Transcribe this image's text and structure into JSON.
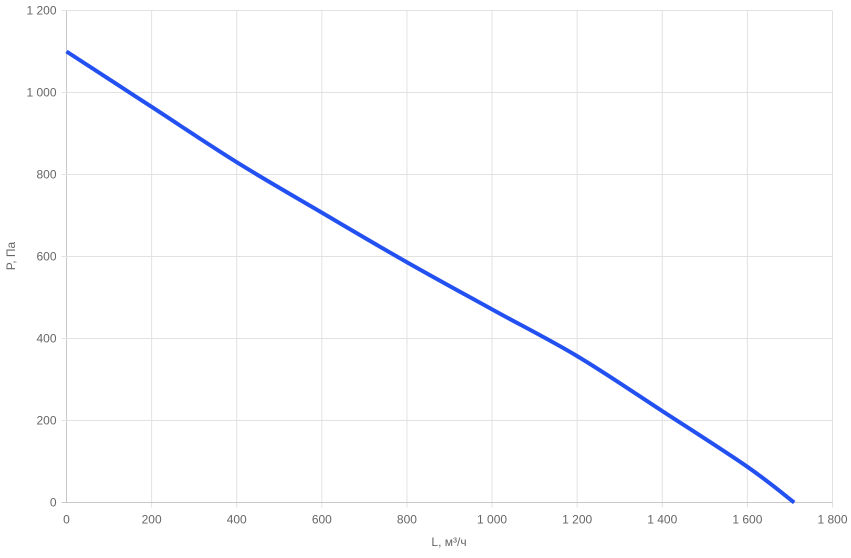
{
  "chart_data": {
    "type": "line",
    "title": "",
    "xlabel": "L, м³/ч",
    "ylabel": "P, Па",
    "xlim": [
      0,
      1800
    ],
    "ylim": [
      0,
      1200
    ],
    "grid": true,
    "x_ticks": [
      "0",
      "200",
      "400",
      "600",
      "800",
      "1 000",
      "1 200",
      "1 400",
      "1 600",
      "1 800"
    ],
    "y_ticks": [
      "0",
      "200",
      "400",
      "600",
      "800",
      "1 000",
      "1 200"
    ],
    "series": [
      {
        "color": "#2350f0",
        "x": [
          0,
          200,
          400,
          600,
          800,
          1000,
          1200,
          1400,
          1600,
          1710
        ],
        "y": [
          1100,
          965,
          830,
          707,
          586,
          471,
          357,
          223,
          87,
          0
        ]
      }
    ]
  }
}
